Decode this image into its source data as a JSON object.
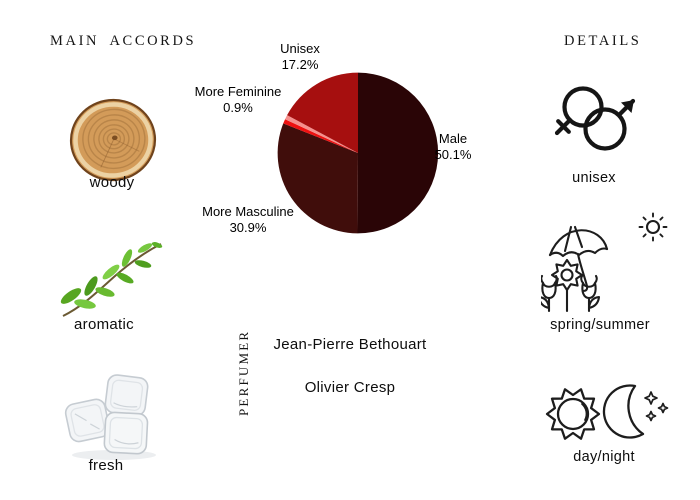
{
  "page": {
    "bg": "#ffffff",
    "text_color": "#111111"
  },
  "main_accords": {
    "title": "MAIN ACCORDS",
    "items": [
      {
        "label": "woody",
        "icon": "wood-slice-image"
      },
      {
        "label": "aromatic",
        "icon": "herb-sprig-image"
      },
      {
        "label": "fresh",
        "icon": "ice-cubes-image"
      }
    ]
  },
  "details": {
    "title": "DETAILS",
    "items": [
      {
        "label": "unisex",
        "icon": "gender-symbols-icon"
      },
      {
        "label": "spring/summer",
        "icon": "flowers-umbrella-sun-icon"
      },
      {
        "label": "day/night",
        "icon": "sun-moon-icon"
      }
    ]
  },
  "perfumer": {
    "title": "PERFUMER",
    "names": [
      "Jean-Pierre Bethouart",
      "Olivier Cresp"
    ]
  },
  "chart_data": {
    "type": "pie",
    "title": "",
    "start_angle_deg": -90,
    "direction": "clockwise",
    "legend_position": "none",
    "slices": [
      {
        "label": "Male",
        "value": 50.1,
        "display": "50.1%",
        "color": "#2a0506"
      },
      {
        "label": "More Masculine",
        "value": 30.9,
        "display": "30.9%",
        "color": "#400d0b"
      },
      {
        "label": "More Feminine",
        "value": 0.9,
        "display": "0.9%",
        "color": "#ee1111"
      },
      {
        "label": "",
        "value": 0.9,
        "display": "",
        "color": "#f5908d"
      },
      {
        "label": "Unisex",
        "value": 17.2,
        "display": "17.2%",
        "color": "#a60f0f"
      }
    ]
  }
}
